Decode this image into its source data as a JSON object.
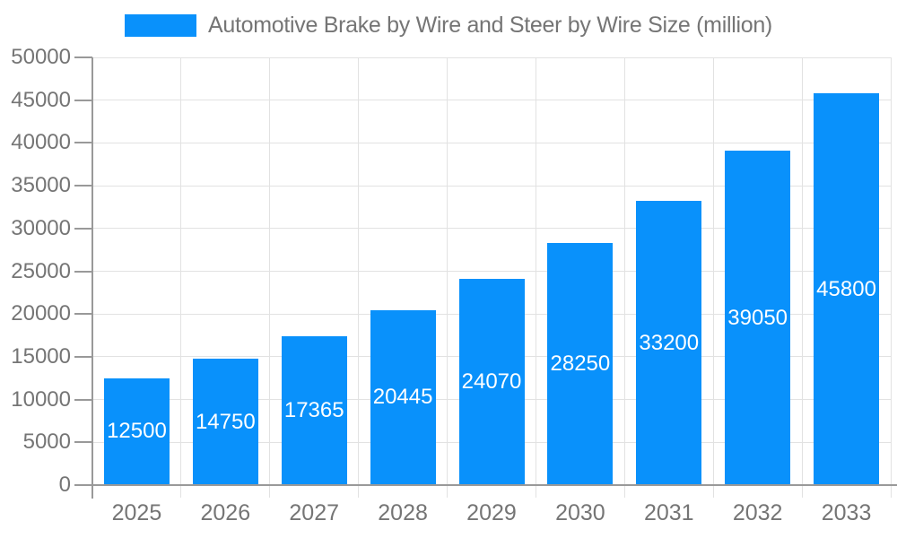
{
  "legend": {
    "items": [
      {
        "label": "Automotive Brake by Wire and Steer by Wire Size (million)"
      }
    ]
  },
  "colors": {
    "bar": "#0991fb",
    "grid": "#e2e2e2",
    "axis": "#999999",
    "tick_label": "#757575",
    "legend_text": "#757575",
    "value_label": "#ffffff",
    "background": "#ffffff"
  },
  "chart_data": {
    "type": "bar",
    "title": "Automotive Brake by Wire and Steer by Wire Size (million)",
    "categories": [
      "2025",
      "2026",
      "2027",
      "2028",
      "2029",
      "2030",
      "2031",
      "2032",
      "2033"
    ],
    "values": [
      12500,
      14750,
      17365,
      20445,
      24070,
      28250,
      33200,
      39050,
      45800
    ],
    "value_labels": [
      "12500",
      "14750",
      "17365",
      "20445",
      "24070",
      "28250",
      "33200",
      "39050",
      "45800"
    ],
    "xlabel": "",
    "ylabel": "",
    "ylim": [
      0,
      50000
    ],
    "yticks": [
      0,
      5000,
      10000,
      15000,
      20000,
      25000,
      30000,
      35000,
      40000,
      45000,
      50000
    ],
    "grid": true,
    "legend_position": "top"
  }
}
